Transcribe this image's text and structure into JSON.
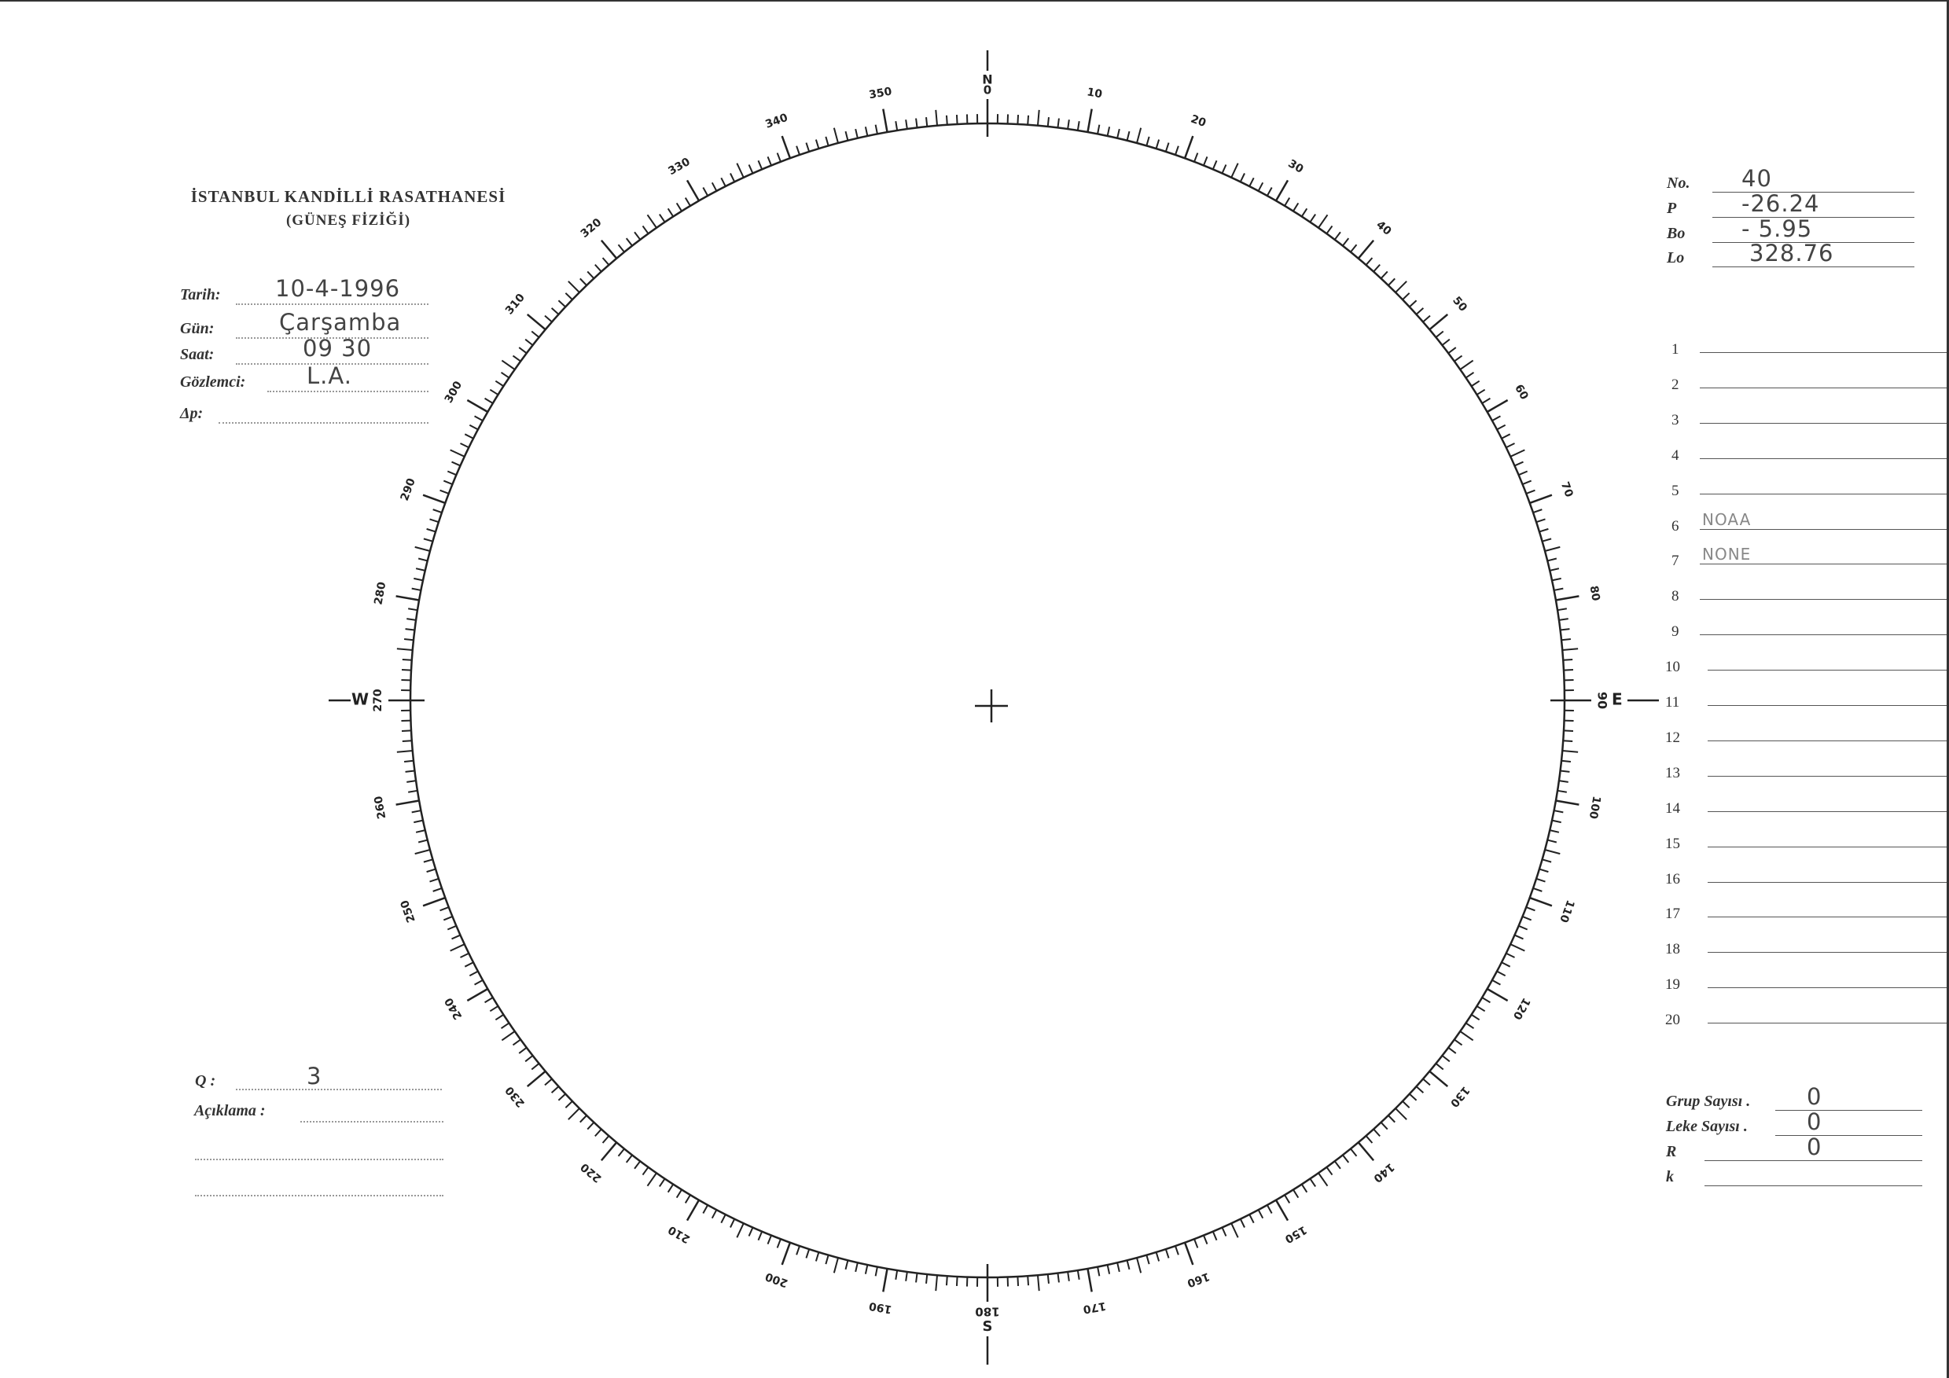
{
  "header": {
    "title": "İSTANBUL KANDİLLİ RASATHANESİ",
    "subtitle": "(GÜNEŞ FİZİĞİ)"
  },
  "left_fields": [
    {
      "label": "Tarih:",
      "value": "10-4-1996"
    },
    {
      "label": "Gün:",
      "value": "Çarşamba"
    },
    {
      "label": "Saat:",
      "value": "09 30"
    },
    {
      "label": "Gözlemci:",
      "value": "L.A."
    },
    {
      "label": "Δp:",
      "value": ""
    }
  ],
  "bottom_left": {
    "q_label": "Q :",
    "q_value": "3",
    "aciklama_label": "Açıklama :"
  },
  "top_right": [
    {
      "label": "No.",
      "value": "40"
    },
    {
      "label": "P",
      "value": "-26.24"
    },
    {
      "label": "Bo",
      "value": "- 5.95"
    },
    {
      "label": "Lo",
      "value": "328.76"
    }
  ],
  "numbered_lines": [
    {
      "num": "1",
      "value": ""
    },
    {
      "num": "2",
      "value": ""
    },
    {
      "num": "3",
      "value": ""
    },
    {
      "num": "4",
      "value": ""
    },
    {
      "num": "5",
      "value": ""
    },
    {
      "num": "6",
      "value": "NOAA"
    },
    {
      "num": "7",
      "value": "NONE"
    },
    {
      "num": "8",
      "value": ""
    },
    {
      "num": "9",
      "value": ""
    },
    {
      "num": "10",
      "value": ""
    },
    {
      "num": "11",
      "value": ""
    },
    {
      "num": "12",
      "value": ""
    },
    {
      "num": "13",
      "value": ""
    },
    {
      "num": "14",
      "value": ""
    },
    {
      "num": "15",
      "value": ""
    },
    {
      "num": "16",
      "value": ""
    },
    {
      "num": "17",
      "value": ""
    },
    {
      "num": "18",
      "value": ""
    },
    {
      "num": "19",
      "value": ""
    },
    {
      "num": "20",
      "value": ""
    }
  ],
  "bottom_right": [
    {
      "label": "Grup Sayısı .",
      "value": "0"
    },
    {
      "label": "Leke Sayısı .",
      "value": "0"
    },
    {
      "label": "R",
      "value": "0"
    },
    {
      "label": "k",
      "value": ""
    }
  ],
  "dial": {
    "labels": [
      "0",
      "10",
      "20",
      "30",
      "40",
      "50",
      "60",
      "70",
      "80",
      "90",
      "100",
      "110",
      "120",
      "130",
      "140",
      "150",
      "160",
      "170",
      "180",
      "190",
      "200",
      "210",
      "220",
      "230",
      "240",
      "250",
      "260",
      "270",
      "280",
      "290",
      "300",
      "310",
      "320",
      "330",
      "340",
      "350"
    ],
    "cardinals": {
      "north": "N",
      "east": "E",
      "south": "S",
      "west": "W"
    }
  }
}
